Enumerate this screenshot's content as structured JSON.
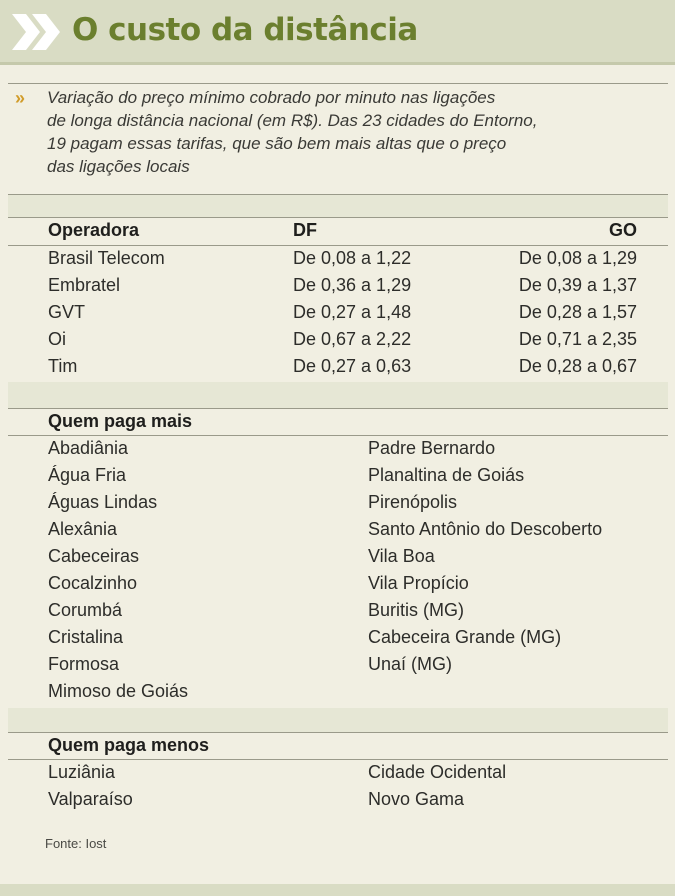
{
  "header": {
    "title": "O custo da distância"
  },
  "intro": {
    "marker": "»",
    "lines": [
      "Variação do preço mínimo cobrado por minuto nas ligações",
      "de longa distância nacional (em R$). Das 23 cidades do Entorno,",
      "19 pagam essas tarifas, que são bem mais altas que o preço",
      "das ligações locais"
    ]
  },
  "table": {
    "headers": [
      "Operadora",
      "DF",
      "GO"
    ],
    "rows": [
      [
        "Brasil Telecom",
        "De 0,08 a 1,22",
        "De 0,08 a 1,29"
      ],
      [
        "Embratel",
        "De 0,36 a 1,29",
        "De 0,39 a 1,37"
      ],
      [
        "GVT",
        "De 0,27 a 1,48",
        "De 0,28 a 1,57"
      ],
      [
        "Oi",
        "De 0,67 a 2,22",
        "De 0,71 a 2,35"
      ],
      [
        "Tim",
        "De 0,27 a 0,63",
        "De 0,28 a 0,67"
      ]
    ]
  },
  "pays_more": {
    "title": "Quem paga mais",
    "col1": [
      "Abadiânia",
      "Água Fria",
      "Águas Lindas",
      "Alexânia",
      "Cabeceiras",
      "Cocalzinho",
      "Corumbá",
      "Cristalina",
      "Formosa",
      "Mimoso de Goiás"
    ],
    "col2": [
      "Padre Bernardo",
      "Planaltina de Goiás",
      "Pirenópolis",
      "Santo Antônio do Descoberto",
      "Vila Boa",
      "Vila Propício",
      "Buritis (MG)",
      "Cabeceira Grande (MG)",
      "Unaí (MG)"
    ]
  },
  "pays_less": {
    "title": "Quem paga menos",
    "col1": [
      "Luziânia",
      "Valparaíso"
    ],
    "col2": [
      "Cidade Ocidental",
      "Novo Gama"
    ]
  },
  "source": "Fonte: Iost",
  "colors": {
    "title": "#6b7f2e",
    "header_bg": "#d9dcc4",
    "page_bg": "#f1efe2",
    "accent": "#d19c2a"
  }
}
